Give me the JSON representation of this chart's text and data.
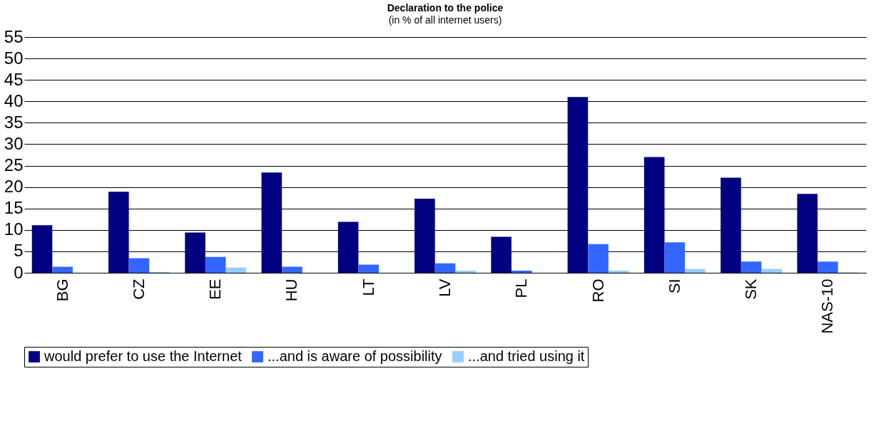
{
  "chart_data": {
    "type": "bar",
    "title": "Declaration to the police",
    "subtitle": "(in % of all internet users)",
    "categories": [
      "BG",
      "CZ",
      "EE",
      "HU",
      "LT",
      "LV",
      "PL",
      "RO",
      "SI",
      "SK",
      "NAS-10"
    ],
    "series": [
      {
        "name": "would prefer to use the Internet",
        "color": "#000080",
        "values": [
          11.1,
          18.9,
          9.4,
          23.4,
          11.9,
          17.3,
          8.4,
          41,
          27,
          22.2,
          18.4
        ]
      },
      {
        "name": "...and is aware of possibility",
        "color": "#3366ff",
        "values": [
          1.4,
          3.4,
          3.7,
          1.4,
          1.9,
          2.2,
          0.5,
          6.7,
          7.1,
          2.6,
          2.6
        ]
      },
      {
        "name": "...and tried using it",
        "color": "#99ccff",
        "values": [
          0,
          0.2,
          1.2,
          0,
          0,
          0.5,
          0,
          0.5,
          0.9,
          0.9,
          0.1
        ]
      }
    ],
    "ylim": [
      0,
      55
    ],
    "yticks": [
      0,
      5,
      10,
      15,
      20,
      25,
      30,
      35,
      40,
      45,
      50,
      55
    ],
    "grid": "y",
    "legend": "bottom"
  }
}
